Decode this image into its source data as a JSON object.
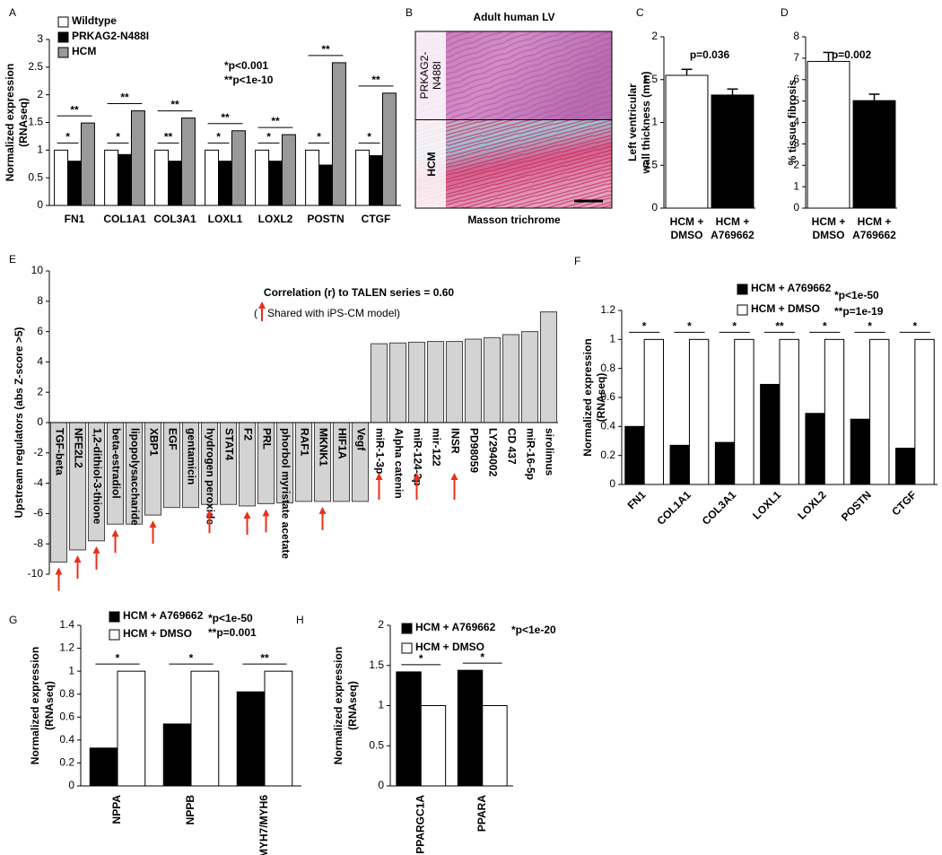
{
  "chart_data": [
    {
      "panel": "A",
      "type": "bar",
      "ylabel": [
        "Normalized expression",
        "(RNAseq)"
      ],
      "categories": [
        "FN1",
        "COL1A1",
        "COL3A1",
        "LOXL1",
        "LOXL2",
        "POSTN",
        "CTGF"
      ],
      "series": [
        {
          "name": "Wildtype",
          "color": "#ffffff",
          "values": [
            1,
            1,
            1,
            1,
            1,
            1,
            1
          ]
        },
        {
          "name": "PRKAG2-N488I",
          "color": "#000000",
          "values": [
            0.8,
            0.92,
            0.8,
            0.8,
            0.8,
            0.73,
            0.9
          ]
        },
        {
          "name": "HCM",
          "color": "#999999",
          "values": [
            1.49,
            1.71,
            1.58,
            1.35,
            1.28,
            2.58,
            2.03
          ]
        }
      ],
      "ylim": [
        0,
        3
      ],
      "yticks": [
        0,
        0.5,
        1,
        1.5,
        2,
        2.5,
        3
      ],
      "annotations": [
        "*p<0.001",
        "**p<1e-10"
      ],
      "brackets": [
        {
          "pair": [
            0,
            1
          ],
          "labels": [
            "*",
            "*",
            "**",
            "*",
            "*",
            "*",
            "*"
          ]
        },
        {
          "pair": [
            0,
            2
          ],
          "labels": [
            "**",
            "**",
            "**",
            "**",
            "**",
            "**",
            "**"
          ]
        }
      ]
    },
    {
      "panel": "B",
      "type": "image",
      "title": "Adult human LV",
      "row_labels": [
        [
          "PRKAG2-",
          "N488I"
        ],
        [
          "HCM"
        ]
      ],
      "caption": "Masson trichrome"
    },
    {
      "panel": "C",
      "type": "bar",
      "ylabel": [
        "Left ventricular",
        "wall thickness (mm)"
      ],
      "categories": [
        [
          "HCM +",
          "DMSO"
        ],
        [
          "HCM +",
          "A769662"
        ]
      ],
      "values": [
        1.55,
        1.32
      ],
      "errors": [
        0.07,
        0.07
      ],
      "colors": [
        "#ffffff",
        "#000000"
      ],
      "ylim": [
        0,
        2
      ],
      "yticks": [
        0,
        0.5,
        1,
        1.5,
        2
      ],
      "annotations": [
        "p=0.036"
      ]
    },
    {
      "panel": "D",
      "type": "bar",
      "ylabel": [
        "% tissue fibrosis"
      ],
      "categories": [
        [
          "HCM +",
          "DMSO"
        ],
        [
          "HCM +",
          "A769662"
        ]
      ],
      "values": [
        6.85,
        5.02
      ],
      "errors": [
        0.42,
        0.3
      ],
      "colors": [
        "#ffffff",
        "#000000"
      ],
      "ylim": [
        0,
        8
      ],
      "yticks": [
        0,
        1,
        2,
        3,
        4,
        5,
        6,
        7,
        8
      ],
      "annotations": [
        "p=0.002"
      ]
    },
    {
      "panel": "E",
      "type": "bar",
      "ylabel": [
        "Upstream regulators (abs Z-score >5)"
      ],
      "categories": [
        "TGF-beta",
        "NFE2L2",
        "1,2-dithiol-3-thione",
        "beta-estradiol",
        "lipopolysaccharide",
        "XBP1",
        "EGF",
        "gentamicin",
        "hydrogen peroxide",
        "STAT4",
        "F2",
        "PRL",
        "phorbol myristate acetate",
        "RAF1",
        "MKNK1",
        "HIF1A",
        "Vegf",
        "miR-1-3p",
        "Alpha catenin",
        "miR-124-3p",
        "mir-122",
        "INSR",
        "PD98059",
        "LY294002",
        "CD 437",
        "miR-16-5p",
        "sirolimus"
      ],
      "values": [
        -9.2,
        -8.4,
        -7.8,
        -6.7,
        -6.7,
        -6.1,
        -5.6,
        -5.6,
        -5.4,
        -5.4,
        -5.5,
        -5.35,
        -5.3,
        -5.2,
        -5.2,
        -5.2,
        -5.2,
        5.2,
        5.25,
        5.3,
        5.35,
        5.35,
        5.5,
        5.6,
        5.8,
        6.0,
        7.3
      ],
      "shared": [
        true,
        true,
        true,
        true,
        false,
        true,
        false,
        false,
        true,
        false,
        true,
        true,
        false,
        false,
        true,
        false,
        false,
        true,
        false,
        true,
        false,
        true,
        false,
        false,
        false,
        false,
        false
      ],
      "color": "#d3d3d3",
      "ylim": [
        -10,
        10
      ],
      "yticks": [
        -10,
        -8,
        -6,
        -4,
        -2,
        0,
        2,
        4,
        6,
        8,
        10
      ],
      "annotations": [
        "Correlation (r) to TALEN series = 0.60"
      ],
      "arrow_note": [
        "(",
        "Shared with iPS-CM model)"
      ]
    },
    {
      "panel": "F",
      "type": "bar",
      "ylabel": [
        "Normalized expression",
        "(RNAseq)"
      ],
      "categories": [
        "FN1",
        "COL1A1",
        "COL3A1",
        "LOXL1",
        "LOXL2",
        "POSTN",
        "CTGF"
      ],
      "series": [
        {
          "name": "HCM + A769662",
          "color": "#000000",
          "values": [
            0.4,
            0.27,
            0.29,
            0.69,
            0.49,
            0.45,
            0.25
          ]
        },
        {
          "name": "HCM + DMSO",
          "color": "#ffffff",
          "values": [
            1,
            1,
            1,
            1,
            1,
            1,
            1
          ]
        }
      ],
      "ylim": [
        0,
        1.2
      ],
      "yticks": [
        0,
        0.2,
        0.4,
        0.6,
        0.8,
        1,
        1.2
      ],
      "annotations": [
        "*p<1e-50",
        "**p=1e-19"
      ],
      "brackets": [
        {
          "pair": [
            0,
            1
          ],
          "labels": [
            "*",
            "*",
            "*",
            "**",
            "*",
            "*",
            "*"
          ]
        }
      ]
    },
    {
      "panel": "G",
      "type": "bar",
      "ylabel": [
        "Normalized expression",
        "(RNAseq)"
      ],
      "categories": [
        "NPPA",
        "NPPB",
        "MYH7/MYH6"
      ],
      "series": [
        {
          "name": "HCM + A769662",
          "color": "#000000",
          "values": [
            0.33,
            0.54,
            0.82
          ]
        },
        {
          "name": "HCM + DMSO",
          "color": "#ffffff",
          "values": [
            1,
            1,
            1
          ]
        }
      ],
      "ylim": [
        0,
        1.4
      ],
      "yticks": [
        0,
        0.2,
        0.4,
        0.6,
        0.8,
        1,
        1.2,
        1.4
      ],
      "annotations": [
        "*p<1e-50",
        "**p=0.001"
      ],
      "brackets": [
        {
          "pair": [
            0,
            1
          ],
          "labels": [
            "*",
            "*",
            "**"
          ]
        }
      ]
    },
    {
      "panel": "H",
      "type": "bar",
      "ylabel": [
        "Normalized expression",
        "(RNAseq)"
      ],
      "categories": [
        "PPARGC1A",
        "PPARA"
      ],
      "series": [
        {
          "name": "HCM + A769662",
          "color": "#000000",
          "values": [
            1.42,
            1.44
          ]
        },
        {
          "name": "HCM + DMSO",
          "color": "#ffffff",
          "values": [
            1,
            1
          ]
        }
      ],
      "ylim": [
        0,
        2
      ],
      "yticks": [
        0,
        0.5,
        1,
        1.5,
        2
      ],
      "annotations": [
        "*p<1e-20"
      ],
      "brackets": [
        {
          "pair": [
            0,
            1
          ],
          "labels": [
            "*",
            "*"
          ]
        }
      ]
    }
  ]
}
